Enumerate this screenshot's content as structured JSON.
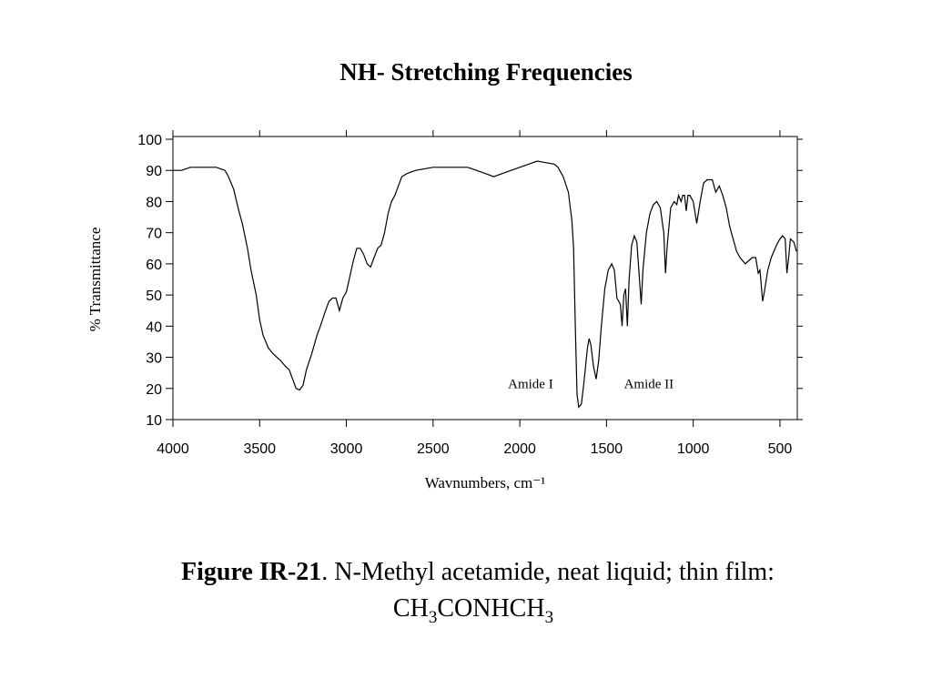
{
  "chart_data": {
    "type": "line",
    "title": "NH- Stretching Frequencies",
    "xlabel": "Wavnumbers, cm⁻¹",
    "ylabel": "% Transmittance",
    "color": "#000000",
    "xlim": [
      4000,
      400
    ],
    "ylim": [
      10,
      100
    ],
    "xticks": [
      4000,
      3500,
      3000,
      2500,
      2000,
      1500,
      1000,
      500
    ],
    "yticks": [
      10,
      20,
      30,
      40,
      50,
      60,
      70,
      80,
      90,
      100
    ],
    "annotations": [
      {
        "text": "Amide I",
        "x": 1938,
        "y": 21.6
      },
      {
        "text": "Amide II",
        "x": 1256,
        "y": 21.6
      }
    ],
    "x": [
      4000,
      3950,
      3900,
      3800,
      3750,
      3700,
      3680,
      3650,
      3620,
      3600,
      3570,
      3550,
      3520,
      3500,
      3480,
      3450,
      3420,
      3380,
      3350,
      3330,
      3310,
      3290,
      3270,
      3250,
      3230,
      3200,
      3170,
      3150,
      3120,
      3100,
      3080,
      3060,
      3040,
      3020,
      3000,
      2980,
      2960,
      2940,
      2920,
      2900,
      2880,
      2860,
      2840,
      2820,
      2800,
      2780,
      2760,
      2740,
      2720,
      2700,
      2680,
      2650,
      2600,
      2500,
      2300,
      2250,
      2200,
      2150,
      2100,
      2050,
      2000,
      1950,
      1900,
      1850,
      1800,
      1780,
      1750,
      1720,
      1700,
      1690,
      1680,
      1670,
      1660,
      1645,
      1630,
      1610,
      1600,
      1590,
      1575,
      1560,
      1545,
      1530,
      1510,
      1490,
      1470,
      1455,
      1440,
      1420,
      1410,
      1400,
      1390,
      1380,
      1370,
      1355,
      1340,
      1325,
      1310,
      1300,
      1290,
      1270,
      1250,
      1230,
      1210,
      1190,
      1170,
      1160,
      1150,
      1130,
      1110,
      1095,
      1085,
      1070,
      1060,
      1050,
      1040,
      1030,
      1020,
      1000,
      980,
      960,
      940,
      920,
      890,
      870,
      850,
      830,
      810,
      790,
      770,
      750,
      730,
      700,
      680,
      660,
      640,
      625,
      615,
      600,
      590,
      570,
      550,
      520,
      500,
      485,
      470,
      460,
      450,
      440,
      420,
      405
    ],
    "values": [
      90,
      90,
      91,
      91,
      91,
      90,
      88,
      84,
      77,
      73,
      65,
      58,
      50,
      42,
      37,
      33,
      31,
      29,
      27,
      26,
      23,
      20,
      19.5,
      21,
      26,
      31,
      37,
      40,
      45,
      48,
      49,
      49,
      45,
      49,
      51,
      56,
      61,
      65,
      65,
      63,
      60,
      59,
      62,
      65,
      66,
      70,
      76,
      80,
      82,
      85,
      88,
      89,
      90,
      91,
      91,
      90,
      89,
      88,
      89,
      90,
      91,
      92,
      93,
      92.5,
      92,
      91,
      88,
      83,
      74,
      65,
      40,
      18,
      14,
      15,
      22,
      33,
      36,
      34,
      27,
      23,
      29,
      40,
      52,
      58,
      60,
      58,
      49,
      47,
      40,
      50,
      52,
      40,
      55,
      66,
      69,
      67,
      55,
      47,
      58,
      70,
      76,
      79,
      80,
      78,
      70,
      57,
      66,
      78,
      80,
      79,
      82,
      80,
      82,
      82,
      77,
      82,
      82,
      80,
      73,
      80,
      86,
      87,
      87,
      83,
      85,
      82,
      78,
      72,
      68,
      64,
      62,
      60,
      61,
      62,
      62,
      57,
      58,
      48,
      51,
      58,
      62,
      66,
      68,
      69,
      68,
      57,
      62,
      68,
      67,
      64
    ]
  },
  "caption": {
    "label": "Figure IR-21",
    "text": ".  N-Methyl acetamide, neat liquid; thin film:",
    "formula": [
      "CH",
      "3",
      "CONHCH",
      "3"
    ]
  }
}
